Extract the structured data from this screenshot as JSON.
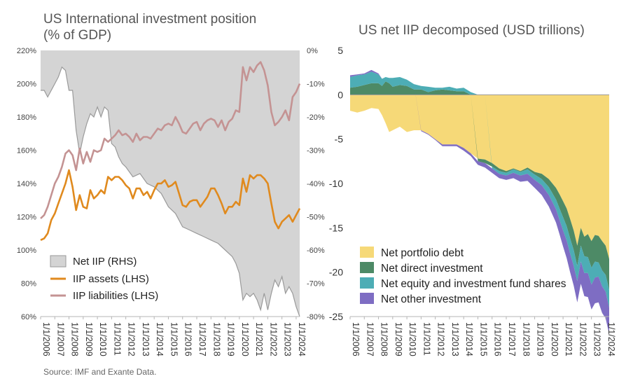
{
  "source": "Source: IMF and Exante Data.",
  "chart_data": [
    {
      "type": "area+line",
      "title": "US International investment position (% of GDP)",
      "title_line1": "US International investment position",
      "title_line2": "(% of GDP)",
      "left_ylim": [
        60,
        220
      ],
      "left_ticks": [
        "60%",
        "80%",
        "100%",
        "120%",
        "140%",
        "160%",
        "180%",
        "200%",
        "220%"
      ],
      "right_ylim": [
        -80,
        0
      ],
      "right_ticks": [
        "-80%",
        "-70%",
        "-60%",
        "-50%",
        "-40%",
        "-30%",
        "-20%",
        "-10%",
        "0%"
      ],
      "x_ticks": [
        "1/1/2006",
        "1/1/2007",
        "1/1/2008",
        "1/1/2009",
        "1/1/2010",
        "1/1/2011",
        "1/1/2012",
        "1/1/2013",
        "1/1/2014",
        "1/1/2015",
        "1/1/2016",
        "1/1/2017",
        "1/1/2018",
        "1/1/2019",
        "1/1/2020",
        "1/1/2021",
        "1/1/2022",
        "1/1/2023",
        "1/1/2024"
      ],
      "legend": [
        "Net IIP (RHS)",
        "IIP assets (LHS)",
        "IIP liabilities (LHS)"
      ],
      "colors": {
        "net_iip": "#d4d4d4",
        "net_iip_edge": "#9a9a9a",
        "assets": "#e08a1e",
        "liabilities": "#c49393"
      },
      "series": [
        {
          "name": "Net IIP (RHS)",
          "axis": "right",
          "x": [
            2006.0,
            2006.25,
            2006.5,
            2006.75,
            2007.0,
            2007.25,
            2007.5,
            2007.75,
            2008.0,
            2008.25,
            2008.5,
            2008.75,
            2009.0,
            2009.25,
            2009.5,
            2009.75,
            2010.0,
            2010.25,
            2010.5,
            2010.75,
            2011.0,
            2011.25,
            2011.5,
            2011.75,
            2012.0,
            2012.5,
            2013.0,
            2013.5,
            2014.0,
            2014.5,
            2015.0,
            2015.5,
            2016.0,
            2016.5,
            2017.0,
            2017.5,
            2018.0,
            2018.5,
            2019.0,
            2019.5,
            2019.75,
            2020.0,
            2020.25,
            2020.5,
            2020.75,
            2021.0,
            2021.25,
            2021.5,
            2021.75,
            2022.0,
            2022.25,
            2022.5,
            2022.75,
            2023.0,
            2023.25,
            2023.5,
            2023.75,
            2024.0,
            2024.25
          ],
          "values": [
            -12,
            -12,
            -14,
            -12,
            -10,
            -8,
            -5,
            -6,
            -12,
            -12,
            -24,
            -31,
            -26,
            -22,
            -19,
            -20,
            -17,
            -20,
            -17,
            -18,
            -28,
            -29,
            -32,
            -34,
            -35,
            -38,
            -37,
            -40,
            -41,
            -43,
            -47,
            -49,
            -53,
            -54,
            -55,
            -56,
            -57,
            -58,
            -60,
            -62,
            -64,
            -67,
            -75,
            -73,
            -74,
            -73,
            -75,
            -78,
            -73,
            -78,
            -73,
            -69,
            -71,
            -68,
            -73,
            -71,
            -73,
            -77,
            -80
          ]
        },
        {
          "name": "IIP assets (LHS)",
          "axis": "left",
          "x": [
            2006.0,
            2006.25,
            2006.5,
            2006.75,
            2007.0,
            2007.25,
            2007.5,
            2007.75,
            2008.0,
            2008.25,
            2008.5,
            2008.75,
            2009.0,
            2009.25,
            2009.5,
            2009.75,
            2010.0,
            2010.25,
            2010.5,
            2010.75,
            2011.0,
            2011.25,
            2011.5,
            2011.75,
            2012.0,
            2012.25,
            2012.5,
            2012.75,
            2013.0,
            2013.25,
            2013.5,
            2013.75,
            2014.0,
            2014.25,
            2014.5,
            2014.75,
            2015.0,
            2015.25,
            2015.5,
            2015.75,
            2016.0,
            2016.25,
            2016.5,
            2016.75,
            2017.0,
            2017.25,
            2017.5,
            2017.75,
            2018.0,
            2018.25,
            2018.5,
            2018.75,
            2019.0,
            2019.25,
            2019.5,
            2019.75,
            2020.0,
            2020.25,
            2020.5,
            2020.75,
            2021.0,
            2021.25,
            2021.5,
            2021.75,
            2022.0,
            2022.25,
            2022.5,
            2022.75,
            2023.0,
            2023.25,
            2023.5,
            2023.75,
            2024.0,
            2024.25
          ],
          "values": [
            106,
            107,
            110,
            118,
            122,
            128,
            134,
            140,
            148,
            138,
            124,
            133,
            126,
            125,
            136,
            131,
            133,
            136,
            134,
            144,
            142,
            144,
            144,
            142,
            139,
            137,
            131,
            137,
            137,
            133,
            135,
            131,
            136,
            140,
            140,
            142,
            138,
            139,
            141,
            134,
            127,
            126,
            129,
            130,
            130,
            126,
            129,
            132,
            137,
            137,
            133,
            128,
            122,
            126,
            126,
            129,
            127,
            143,
            135,
            145,
            143,
            145,
            145,
            143,
            140,
            128,
            117,
            113,
            117,
            119,
            121,
            117,
            121,
            125
          ]
        },
        {
          "name": "IIP liabilities (LHS)",
          "axis": "left",
          "x": [
            2006.0,
            2006.25,
            2006.5,
            2006.75,
            2007.0,
            2007.25,
            2007.5,
            2007.75,
            2008.0,
            2008.25,
            2008.5,
            2008.75,
            2009.0,
            2009.25,
            2009.5,
            2009.75,
            2010.0,
            2010.25,
            2010.5,
            2010.75,
            2011.0,
            2011.25,
            2011.5,
            2011.75,
            2012.0,
            2012.25,
            2012.5,
            2012.75,
            2013.0,
            2013.25,
            2013.5,
            2013.75,
            2014.0,
            2014.25,
            2014.5,
            2014.75,
            2015.0,
            2015.25,
            2015.5,
            2015.75,
            2016.0,
            2016.25,
            2016.5,
            2016.75,
            2017.0,
            2017.25,
            2017.5,
            2017.75,
            2018.0,
            2018.25,
            2018.5,
            2018.75,
            2019.0,
            2019.25,
            2019.5,
            2019.75,
            2020.0,
            2020.25,
            2020.5,
            2020.75,
            2021.0,
            2021.25,
            2021.5,
            2021.75,
            2022.0,
            2022.25,
            2022.5,
            2022.75,
            2023.0,
            2023.25,
            2023.5,
            2023.75,
            2024.0,
            2024.25
          ],
          "values": [
            119,
            121,
            126,
            133,
            140,
            144,
            150,
            158,
            160,
            157,
            148,
            161,
            152,
            159,
            153,
            160,
            159,
            160,
            167,
            165,
            167,
            169,
            172,
            169,
            170,
            168,
            165,
            170,
            166,
            168,
            168,
            167,
            170,
            173,
            172,
            175,
            176,
            175,
            180,
            176,
            171,
            170,
            173,
            176,
            177,
            172,
            176,
            178,
            179,
            178,
            174,
            178,
            172,
            177,
            179,
            184,
            183,
            210,
            202,
            210,
            207,
            211,
            213,
            208,
            199,
            183,
            175,
            177,
            180,
            184,
            178,
            192,
            195,
            200
          ]
        }
      ]
    },
    {
      "type": "stacked_area",
      "title": "US net IIP decomposed (USD trillions)",
      "ylim": [
        -25,
        5
      ],
      "y_ticks": [
        "-25",
        "-20",
        "-15",
        "-10",
        "-5",
        "0",
        "5"
      ],
      "x_ticks": [
        "1/1/2006",
        "1/1/2007",
        "1/1/2008",
        "1/1/2009",
        "1/1/2010",
        "1/1/2011",
        "1/1/2012",
        "1/1/2013",
        "1/1/2014",
        "1/1/2015",
        "1/1/2016",
        "1/1/2017",
        "1/1/2018",
        "1/1/2019",
        "1/1/2020",
        "1/1/2021",
        "1/1/2022",
        "1/1/2023",
        "1/1/2024"
      ],
      "legend": [
        "Net portfolio debt",
        "Net direct investment",
        "Net equity and investment fund shares",
        "Net other investment"
      ],
      "colors": {
        "Net portfolio debt": "#f6d978",
        "Net direct investment": "#4d8a66",
        "Net equity and investment fund shares": "#4dadb5",
        "Net other investment": "#7e6dc3"
      },
      "x": [
        2006,
        2006.5,
        2007,
        2007.5,
        2008,
        2008.25,
        2008.5,
        2008.75,
        2009,
        2009.5,
        2010,
        2010.5,
        2011,
        2011.5,
        2012,
        2012.5,
        2013,
        2013.5,
        2014,
        2014.5,
        2015,
        2015.5,
        2016,
        2016.5,
        2017,
        2017.5,
        2018,
        2018.5,
        2019,
        2019.5,
        2020,
        2020.5,
        2020.75,
        2021,
        2021.25,
        2021.5,
        2021.75,
        2022,
        2022.25,
        2022.5,
        2022.75,
        2023,
        2023.25,
        2023.5,
        2023.75,
        2024,
        2024.25
      ],
      "series": [
        {
          "name": "Net portfolio debt",
          "values": [
            -1.8,
            -2.0,
            -1.8,
            -1.5,
            -1.6,
            -2.3,
            -3.2,
            -4.2,
            -4.0,
            -3.6,
            -4.2,
            -4.0,
            -4.0,
            -4.4,
            -5.0,
            -5.6,
            -5.6,
            -5.6,
            -6.0,
            -6.6,
            -7.2,
            -7.3,
            -7.7,
            -8.3,
            -8.6,
            -8.3,
            -8.6,
            -8.2,
            -8.7,
            -8.9,
            -9.5,
            -10.5,
            -11.2,
            -12.0,
            -12.8,
            -14.0,
            -15.3,
            -17.0,
            -15.0,
            -16.0,
            -15.7,
            -16.5,
            -15.8,
            -15.9,
            -16.5,
            -17.0,
            -18.5
          ]
        },
        {
          "name": "Net direct investment",
          "values": [
            0.8,
            0.9,
            1.1,
            1.3,
            1.3,
            1.0,
            1.5,
            1.3,
            0.9,
            1.1,
            1.0,
            0.6,
            0.6,
            0.3,
            0.5,
            0.6,
            0.5,
            0.4,
            0.4,
            0.0,
            -0.3,
            -0.4,
            -0.4,
            -0.3,
            -0.2,
            -0.1,
            -0.1,
            -0.2,
            -0.3,
            -0.6,
            -0.9,
            -1.3,
            -1.6,
            -1.8,
            -2.0,
            -2.2,
            -2.2,
            -2.3,
            -2.0,
            -2.2,
            -2.6,
            -3.0,
            -3.0,
            -3.0,
            -3.3,
            -3.3,
            -3.5
          ]
        },
        {
          "name": "Net equity and investment fund shares",
          "values": [
            1.2,
            1.3,
            1.2,
            1.3,
            1.0,
            0.8,
            0.5,
            0.6,
            1.0,
            0.9,
            0.7,
            0.6,
            0.4,
            0.6,
            0.3,
            0.2,
            0.4,
            0.3,
            0.4,
            0.3,
            0.0,
            0.0,
            -0.2,
            -0.3,
            -0.3,
            -0.4,
            -0.4,
            -0.5,
            -0.6,
            -0.7,
            -0.9,
            -1.1,
            -1.3,
            -1.5,
            -1.6,
            -1.7,
            -1.8,
            -1.7,
            -1.8,
            -1.9,
            -1.8,
            -1.9,
            -1.8,
            -1.6,
            -1.8,
            -1.9,
            -2.0
          ]
        },
        {
          "name": "Net other investment",
          "values": [
            0.2,
            0.1,
            0.1,
            0.2,
            0.1,
            0.0,
            0.0,
            0.0,
            0.0,
            0.0,
            0.0,
            0.0,
            -0.1,
            -0.1,
            -0.1,
            -0.2,
            -0.2,
            -0.2,
            -0.3,
            -0.3,
            -0.4,
            -0.5,
            -0.5,
            -0.5,
            -0.5,
            -0.6,
            -0.7,
            -0.8,
            -0.9,
            -1.1,
            -1.3,
            -1.5,
            -1.6,
            -1.8,
            -2.0,
            -2.1,
            -2.2,
            -2.4,
            -2.5,
            -2.6,
            -2.7,
            -2.8,
            -2.9,
            -2.9,
            -3.0,
            -3.0,
            -3.0
          ]
        }
      ]
    }
  ]
}
